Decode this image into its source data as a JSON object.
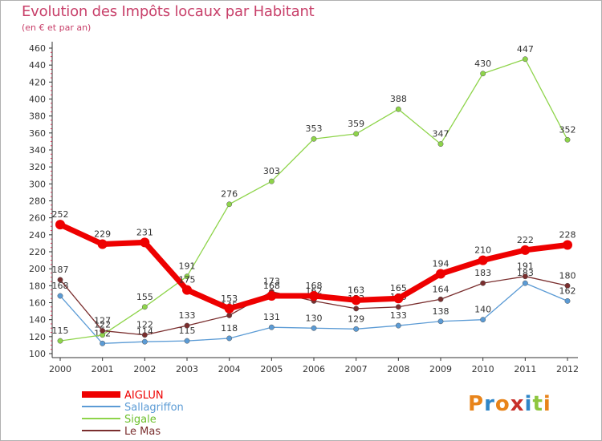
{
  "chart_data": {
    "type": "line",
    "title": "Evolution des Impôts locaux par Habitant",
    "subtitle": "(en € et par an)",
    "xlabel": "",
    "ylabel": "",
    "ylim": [
      100,
      460
    ],
    "ytick_step": 20,
    "grid": false,
    "legend_position": "bottom-left",
    "categories": [
      "2000",
      "2001",
      "2002",
      "2003",
      "2004",
      "2005",
      "2006",
      "2007",
      "2008",
      "2009",
      "2010",
      "2011",
      "2012"
    ],
    "series": [
      {
        "name": "Sallagriffon",
        "color": "#5b9bd5",
        "values": [
          168,
          112,
          114,
          115,
          118,
          131,
          130,
          129,
          133,
          138,
          140,
          183,
          162
        ],
        "labels": [
          "168",
          "112",
          "114",
          "115",
          "118",
          "131",
          "130",
          "129",
          "133",
          "138",
          "140",
          "183",
          "162"
        ]
      },
      {
        "name": "Sigale",
        "color": "#8ed44a",
        "values": [
          115,
          122,
          155,
          191,
          276,
          303,
          353,
          359,
          388,
          347,
          430,
          447,
          352
        ],
        "labels": [
          "115",
          "122",
          "155",
          "191",
          "276",
          "303",
          "353",
          "359",
          "388",
          "347",
          "430",
          "447",
          "352"
        ]
      },
      {
        "name": "Le Mas",
        "color": "#7a2e2e",
        "values": [
          187,
          127,
          122,
          133,
          145,
          173,
          162,
          153,
          155,
          164,
          183,
          191,
          180
        ],
        "labels": [
          "187",
          "127",
          "122",
          "133",
          "145",
          "173",
          "162",
          "153",
          "155",
          "164",
          "183",
          "191",
          "180"
        ]
      },
      {
        "name": "AIGLUN",
        "color": "#ee0000",
        "values": [
          252,
          229,
          231,
          175,
          153,
          168,
          168,
          163,
          165,
          194,
          210,
          222,
          228
        ],
        "labels": [
          "252",
          "229",
          "231",
          "175",
          "153",
          "168",
          "168",
          "163",
          "165",
          "194",
          "210",
          "222",
          "228"
        ]
      }
    ],
    "legend_order": [
      "AIGLUN",
      "Sallagriffon",
      "Sigale",
      "Le Mas"
    ]
  },
  "logo": {
    "text": "Proxiti",
    "colors": [
      "#e8841a",
      "#2f86c8",
      "#e8841a",
      "#c8302a",
      "#2f86c8",
      "#8ec63f",
      "#e8841a"
    ]
  }
}
